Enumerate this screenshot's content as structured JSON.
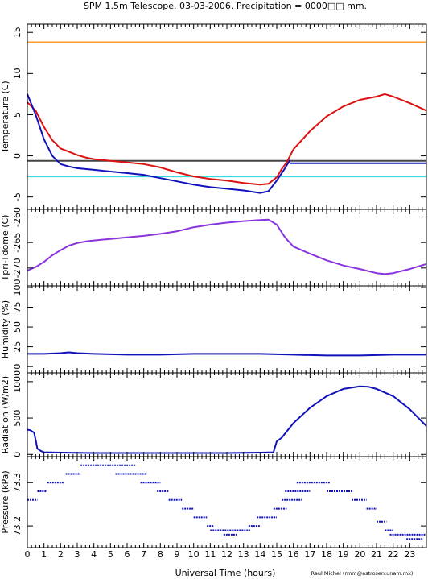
{
  "title": "SPM 1.5m Telescope. 03-03-2006. Precipitation = 0000□□ mm.",
  "xlabel": "Universal Time (hours)",
  "credit": "Raul Michel (rmm@astrosen.unam.mx)",
  "colors": {
    "red": "#dd1111",
    "blue": "#1111bb",
    "orange": "#ff9922",
    "cyan": "#33dddd",
    "gray": "#444444",
    "purple": "#8833dd"
  },
  "chart_data": [
    {
      "type": "line",
      "ylabel": "Temperature (C)",
      "xlim": [
        0,
        24
      ],
      "ylim": [
        -6.5,
        16
      ],
      "yticks": [
        -5,
        0,
        5,
        10,
        15
      ],
      "xticks": [
        0,
        1,
        2,
        3,
        4,
        5,
        6,
        7,
        8,
        9,
        10,
        11,
        12,
        13,
        14,
        15,
        16,
        17,
        18,
        19,
        20,
        21,
        22,
        23
      ],
      "grid": false,
      "hlines": [
        {
          "y": 13.8,
          "color": "orange"
        },
        {
          "y": -0.6,
          "color": "gray"
        },
        {
          "y": -2.5,
          "color": "cyan"
        }
      ],
      "series": [
        {
          "color": "red",
          "x": [
            0,
            0.5,
            1,
            1.5,
            2,
            2.5,
            3,
            3.5,
            4,
            5,
            6,
            7,
            8,
            9,
            10,
            11,
            12,
            13,
            14,
            14.5,
            15,
            15.3,
            15.6,
            16,
            17,
            18,
            19,
            20,
            21,
            21.5,
            22,
            23,
            24
          ],
          "y": [
            6.5,
            5.5,
            3.5,
            1.9,
            0.9,
            0.5,
            0.1,
            -0.2,
            -0.4,
            -0.6,
            -0.8,
            -1.0,
            -1.4,
            -2.0,
            -2.5,
            -2.8,
            -3.0,
            -3.3,
            -3.5,
            -3.4,
            -2.6,
            -1.6,
            -0.8,
            0.8,
            3.0,
            4.8,
            6.0,
            6.8,
            7.2,
            7.5,
            7.2,
            6.4,
            5.5
          ]
        },
        {
          "color": "blue",
          "x": [
            0,
            0.5,
            1,
            1.5,
            2,
            2.5,
            3,
            3.5,
            4,
            5,
            6,
            7,
            8,
            9,
            10,
            11,
            12,
            13,
            14,
            14.5,
            15,
            15.5,
            15.8
          ],
          "y": [
            7.5,
            5.0,
            2.0,
            0.0,
            -1.0,
            -1.3,
            -1.5,
            -1.6,
            -1.7,
            -1.9,
            -2.1,
            -2.3,
            -2.7,
            -3.1,
            -3.5,
            -3.8,
            -4.0,
            -4.2,
            -4.5,
            -4.3,
            -3.0,
            -1.5,
            -0.5
          ]
        },
        {
          "color": "blue",
          "x": [
            15.8,
            24
          ],
          "y": [
            -0.9,
            -0.9
          ]
        }
      ]
    },
    {
      "type": "line",
      "ylabel": "Tpri-Tdome (C)",
      "xlim": [
        0,
        24
      ],
      "ylim": [
        -273.5,
        -258.5
      ],
      "yticks": [
        -270,
        -265,
        -260
      ],
      "grid": false,
      "series": [
        {
          "color": "purple",
          "x": [
            0,
            0.5,
            1,
            1.5,
            2,
            2.5,
            3,
            3.5,
            4,
            5,
            6,
            7,
            8,
            9,
            10,
            11,
            12,
            13,
            14,
            14.5,
            15,
            15.5,
            16,
            17,
            18,
            19,
            20,
            21,
            21.5,
            22,
            23,
            24
          ],
          "y": [
            -270.5,
            -269.8,
            -268.8,
            -267.5,
            -266.5,
            -265.6,
            -265.1,
            -264.8,
            -264.6,
            -264.3,
            -264.0,
            -263.7,
            -263.3,
            -262.8,
            -262.0,
            -261.5,
            -261.1,
            -260.8,
            -260.6,
            -260.5,
            -261.5,
            -264.0,
            -265.8,
            -267.2,
            -268.5,
            -269.5,
            -270.2,
            -271.0,
            -271.2,
            -271.0,
            -270.2,
            -269.2
          ]
        }
      ]
    },
    {
      "type": "line",
      "ylabel": "Humidity (%)",
      "xlim": [
        0,
        24
      ],
      "ylim": [
        -8,
        102
      ],
      "yticks": [
        0,
        25,
        50,
        75,
        100
      ],
      "grid": false,
      "series": [
        {
          "color": "blue",
          "x": [
            0,
            1,
            2,
            2.5,
            3,
            4,
            6,
            8,
            10,
            12,
            14,
            16,
            18,
            20,
            22,
            24
          ],
          "y": [
            16,
            16,
            17,
            18,
            17,
            16,
            15,
            15,
            16,
            16,
            16,
            15,
            14,
            14,
            15,
            15
          ]
        }
      ]
    },
    {
      "type": "line",
      "ylabel": "Radiation (W/m2)",
      "xlim": [
        0,
        24
      ],
      "ylim": [
        -30,
        1120
      ],
      "yticks": [
        0,
        500,
        1000
      ],
      "grid": false,
      "series": [
        {
          "color": "blue",
          "x": [
            0,
            0.2,
            0.4,
            0.5,
            0.6,
            0.8,
            1,
            2,
            4,
            6,
            8,
            10,
            12,
            14,
            14.8,
            15,
            15.3,
            16,
            17,
            18,
            19,
            20,
            20.5,
            21,
            22,
            23,
            24
          ],
          "y": [
            340,
            330,
            300,
            200,
            80,
            50,
            30,
            25,
            20,
            20,
            20,
            20,
            20,
            25,
            30,
            180,
            230,
            430,
            640,
            800,
            900,
            935,
            930,
            900,
            800,
            620,
            390
          ]
        }
      ]
    },
    {
      "type": "scatter",
      "ylabel": "Pressure (kPa)",
      "xlim": [
        0,
        24
      ],
      "ylim": [
        73.15,
        73.36
      ],
      "yticks": [
        73.2,
        73.3
      ],
      "grid": false,
      "segments": [
        {
          "x": [
            0.0,
            0.6
          ],
          "y": 73.26
        },
        {
          "x": [
            0.6,
            1.2
          ],
          "y": 73.28
        },
        {
          "x": [
            1.2,
            2.2
          ],
          "y": 73.3
        },
        {
          "x": [
            2.3,
            3.2
          ],
          "y": 73.32
        },
        {
          "x": [
            3.2,
            6.5
          ],
          "y": 73.34
        },
        {
          "x": [
            5.3,
            7.2
          ],
          "y": 73.32
        },
        {
          "x": [
            6.8,
            8.0
          ],
          "y": 73.3
        },
        {
          "x": [
            7.8,
            8.5
          ],
          "y": 73.28
        },
        {
          "x": [
            8.5,
            9.3
          ],
          "y": 73.26
        },
        {
          "x": [
            9.3,
            10.0
          ],
          "y": 73.24
        },
        {
          "x": [
            10.0,
            10.8
          ],
          "y": 73.22
        },
        {
          "x": [
            10.8,
            11.2
          ],
          "y": 73.2
        },
        {
          "x": [
            11.0,
            13.4
          ],
          "y": 73.19
        },
        {
          "x": [
            11.8,
            12.6
          ],
          "y": 73.18
        },
        {
          "x": [
            13.3,
            14.0
          ],
          "y": 73.2
        },
        {
          "x": [
            13.8,
            15.0
          ],
          "y": 73.22
        },
        {
          "x": [
            14.8,
            15.6
          ],
          "y": 73.24
        },
        {
          "x": [
            15.3,
            16.5
          ],
          "y": 73.26
        },
        {
          "x": [
            15.5,
            17.0
          ],
          "y": 73.28
        },
        {
          "x": [
            16.2,
            18.2
          ],
          "y": 73.3
        },
        {
          "x": [
            18.0,
            19.6
          ],
          "y": 73.28
        },
        {
          "x": [
            19.5,
            20.4
          ],
          "y": 73.26
        },
        {
          "x": [
            20.4,
            21.0
          ],
          "y": 73.24
        },
        {
          "x": [
            21.0,
            21.6
          ],
          "y": 73.21
        },
        {
          "x": [
            21.5,
            22.0
          ],
          "y": 73.19
        },
        {
          "x": [
            21.8,
            24.0
          ],
          "y": 73.18
        },
        {
          "x": [
            22.8,
            23.8
          ],
          "y": 73.17
        }
      ]
    }
  ]
}
